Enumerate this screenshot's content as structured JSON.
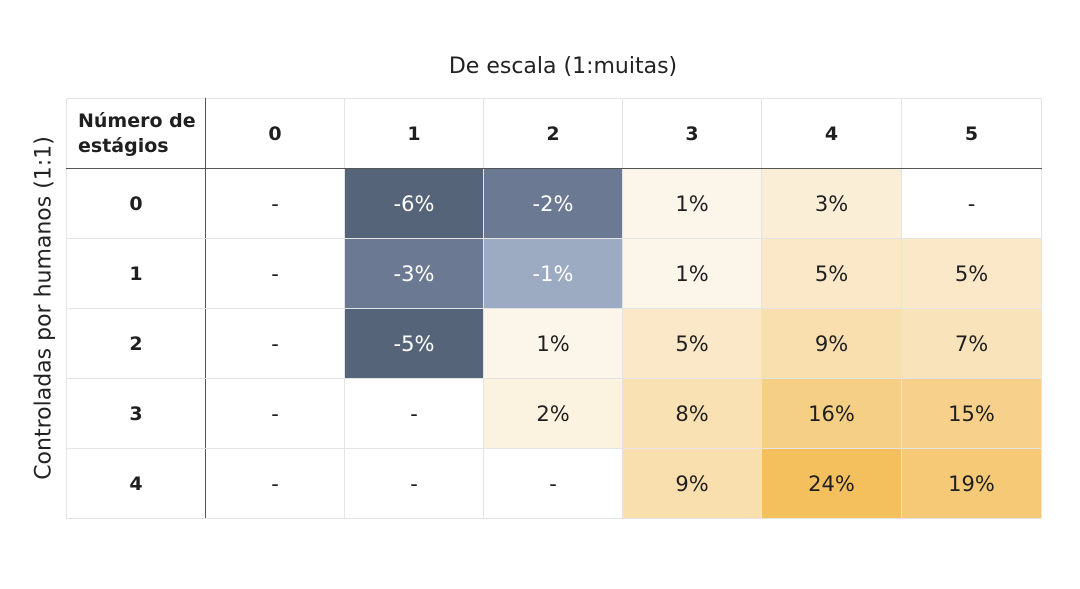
{
  "chart_data": {
    "type": "heatmap",
    "title": "",
    "xlabel": "De escala (1:muitas)",
    "ylabel": "Controladas por humanos (1:1)",
    "corner_label": "Número de estágios",
    "x_categories": [
      "0",
      "1",
      "2",
      "3",
      "4",
      "5"
    ],
    "y_categories": [
      "0",
      "1",
      "2",
      "3",
      "4"
    ],
    "cells": [
      [
        "-",
        "-6%",
        "-2%",
        "1%",
        "3%",
        "-"
      ],
      [
        "-",
        "-3%",
        "-1%",
        "1%",
        "5%",
        "5%"
      ],
      [
        "-",
        "-5%",
        "1%",
        "5%",
        "9%",
        "7%"
      ],
      [
        "-",
        "-",
        "2%",
        "8%",
        "16%",
        "15%"
      ],
      [
        "-",
        "-",
        "-",
        "9%",
        "24%",
        "19%"
      ]
    ],
    "values": [
      [
        null,
        -6,
        -2,
        1,
        3,
        null
      ],
      [
        null,
        -3,
        -1,
        1,
        5,
        5
      ],
      [
        null,
        -5,
        1,
        5,
        9,
        7
      ],
      [
        null,
        null,
        2,
        8,
        16,
        15
      ],
      [
        null,
        null,
        null,
        9,
        24,
        19
      ]
    ],
    "colors": {
      "negative_strong": "#566479",
      "negative_mid": "#6b7a92",
      "negative_light": "#9cabc1",
      "positive_strong": "#f4bf5d",
      "positive_low": "#fdfbf8",
      "empty": "#ffffff"
    }
  }
}
